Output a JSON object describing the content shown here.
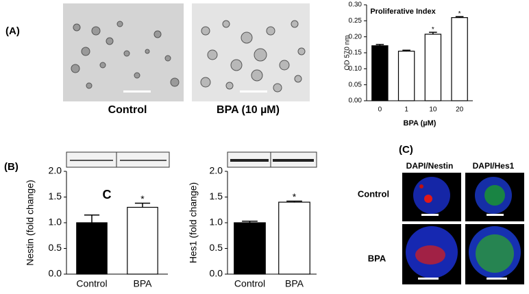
{
  "panel_labels": [
    "(A)",
    "(B)",
    "(C)"
  ],
  "image_captions": [
    "Control",
    "BPA (10 µM)"
  ],
  "panel_c": {
    "columns": [
      "DAPI/Nestin",
      "DAPI/Hes1"
    ],
    "rows": [
      "Control",
      "BPA"
    ]
  },
  "chart_data": [
    {
      "type": "bar",
      "title": "Proliferative Index",
      "ylabel": "OD 570 nm",
      "xlabel": "BPA (µM)",
      "categories": [
        "0",
        "1",
        "10",
        "20"
      ],
      "values": [
        0.172,
        0.155,
        0.208,
        0.26
      ],
      "errors": [
        0.004,
        0.003,
        0.006,
        0.003
      ],
      "colors": [
        "#000000",
        "#ffffff",
        "#ffffff",
        "#ffffff"
      ],
      "significance": [
        null,
        null,
        "*",
        "*"
      ],
      "ylim": [
        0,
        0.3
      ],
      "yticks": [
        {
          "value": 0,
          "label": "0.00"
        },
        {
          "value": 0.05,
          "label": "0.05"
        },
        {
          "value": 0.1,
          "label": "0.10"
        },
        {
          "value": 0.15,
          "label": "0.15"
        },
        {
          "value": 0.2,
          "label": "0.20"
        },
        {
          "value": 0.25,
          "label": "0.25"
        },
        {
          "value": 0.3,
          "label": "0.30"
        }
      ]
    },
    {
      "type": "bar",
      "ylabel": "Nestin (fold change)",
      "categories": [
        "Control",
        "BPA"
      ],
      "values": [
        1.0,
        1.3
      ],
      "errors": [
        0.15,
        0.08
      ],
      "colors": [
        "#000000",
        "#ffffff"
      ],
      "significance": [
        null,
        "*"
      ],
      "annotations": [
        "C"
      ],
      "ylim": [
        0,
        2
      ],
      "yticks": [
        {
          "value": 0,
          "label": "0.0"
        },
        {
          "value": 0.5,
          "label": "0.5"
        },
        {
          "value": 1,
          "label": "1.0"
        },
        {
          "value": 1.5,
          "label": "1.5"
        },
        {
          "value": 2,
          "label": "2.0"
        }
      ]
    },
    {
      "type": "bar",
      "ylabel": "Hes1 (fold change)",
      "categories": [
        "Control",
        "BPA"
      ],
      "values": [
        1.0,
        1.4
      ],
      "errors": [
        0.03,
        0.02
      ],
      "colors": [
        "#000000",
        "#ffffff"
      ],
      "significance": [
        null,
        "*"
      ],
      "ylim": [
        0,
        2
      ],
      "yticks": [
        {
          "value": 0,
          "label": "0.0"
        },
        {
          "value": 0.5,
          "label": "0.5"
        },
        {
          "value": 1,
          "label": "1.0"
        },
        {
          "value": 1.5,
          "label": "1.5"
        },
        {
          "value": 2,
          "label": "2.0"
        }
      ]
    }
  ]
}
